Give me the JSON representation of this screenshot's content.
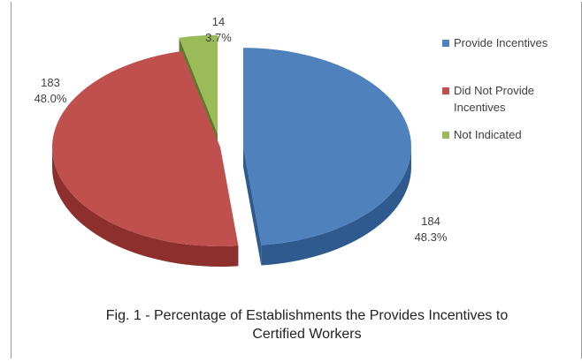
{
  "chart_data": {
    "type": "pie",
    "style": "3d-exploded",
    "title": "Fig. 1 - Percentage of Establishments  the Provides Incentives to Certified Workers",
    "title_lines": [
      "Fig. 1 - Percentage of Establishments  the Provides Incentives to",
      "Certified Workers"
    ],
    "legend_position": "right",
    "slices": [
      {
        "label": "Provide Incentives",
        "legend_lines": [
          "Provide Incentives"
        ],
        "value": 184,
        "percent": "48.3%",
        "color": "#4F81BD",
        "side_color": "#2E5A8E"
      },
      {
        "label": "Did Not Provide Incentives",
        "legend_lines": [
          "Did Not Provide",
          "Incentives"
        ],
        "value": 183,
        "percent": "48.0%",
        "color": "#C0504D",
        "side_color": "#8C2F2D"
      },
      {
        "label": "Not Indicated",
        "legend_lines": [
          "Not Indicated"
        ],
        "value": 14,
        "percent": "3.7%",
        "color": "#9BBB59",
        "side_color": "#5E7A2C"
      }
    ],
    "data_labels": [
      {
        "value": "184",
        "percent": "48.3%"
      },
      {
        "value": "183",
        "percent": "48.0%"
      },
      {
        "value": "14",
        "percent": "3.7%"
      }
    ]
  }
}
